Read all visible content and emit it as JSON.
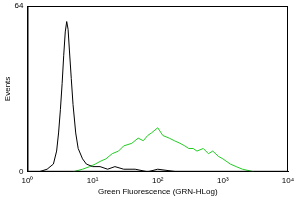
{
  "chart_data": {
    "type": "line",
    "x_label": "Green Fluorescence (GRN-HLog)",
    "y_label": "Events",
    "log": "x",
    "grid": false,
    "xlim": [
      1,
      10000
    ],
    "xticks": [
      {
        "value": 1,
        "label": "10⁰"
      },
      {
        "value": 10,
        "label": "10¹"
      },
      {
        "value": 100,
        "label": "10²"
      },
      {
        "value": 1000,
        "label": "10³"
      },
      {
        "value": 10000,
        "label": "10⁴"
      }
    ],
    "ylim": [
      0,
      64
    ],
    "yticks": [
      0,
      64
    ],
    "series": [
      {
        "color": "#000000",
        "x": [
          1.5,
          2,
          2.5,
          2.8,
          3,
          3.2,
          3.4,
          3.6,
          3.8,
          4,
          4.2,
          4.4,
          4.7,
          5,
          5.5,
          6,
          7,
          8,
          10,
          13,
          17,
          22,
          30,
          45,
          70,
          100,
          200
        ],
        "values": [
          0,
          1,
          3,
          8,
          15,
          24,
          34,
          45,
          54,
          58,
          55,
          47,
          36,
          26,
          15,
          9,
          5,
          3,
          2,
          2,
          1,
          2,
          1,
          1,
          0,
          1,
          0
        ]
      },
      {
        "color": "#22cc22",
        "x": [
          5,
          7,
          9,
          11,
          13,
          16,
          20,
          25,
          30,
          40,
          50,
          60,
          70,
          80,
          100,
          120,
          150,
          180,
          220,
          260,
          300,
          350,
          400,
          500,
          600,
          700,
          850,
          1000,
          1300,
          1600,
          2000,
          3000
        ],
        "values": [
          0,
          1,
          2,
          3,
          4,
          5,
          7,
          8,
          10,
          11,
          13,
          12,
          14,
          15,
          17,
          14,
          13,
          12,
          11,
          10,
          9,
          9,
          8,
          9,
          7,
          8,
          6,
          5,
          3,
          2,
          1,
          0
        ]
      }
    ]
  }
}
